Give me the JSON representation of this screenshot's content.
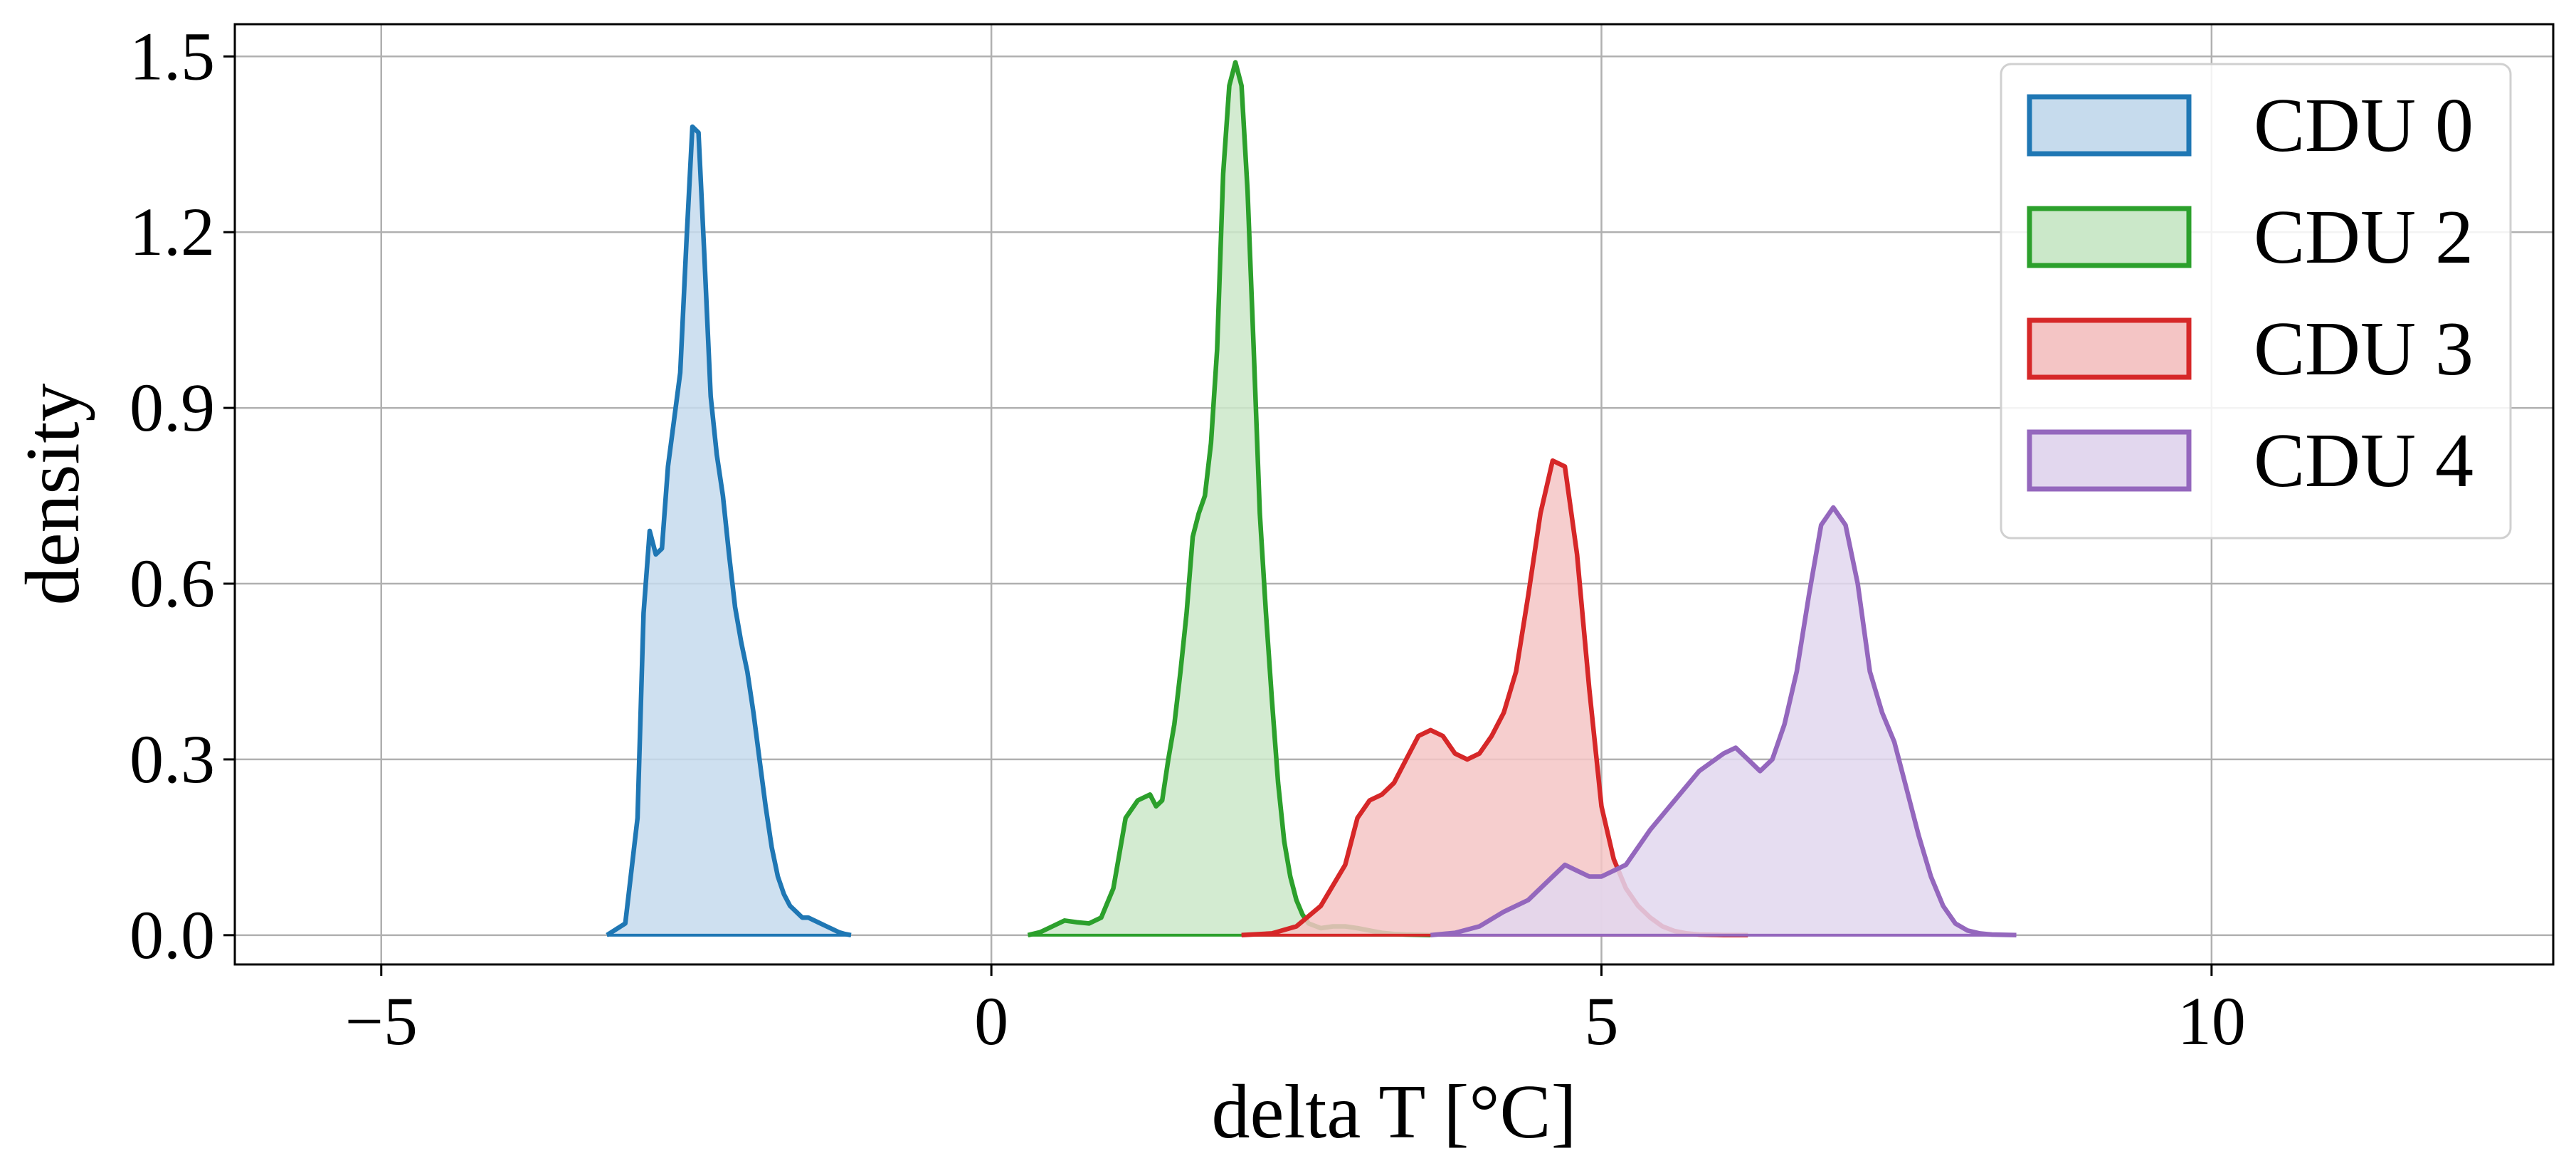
{
  "chart_data": {
    "type": "area",
    "xlabel": "delta T [°C]",
    "ylabel": "density",
    "xlim": [
      -6.2,
      12.8
    ],
    "ylim": [
      -0.05,
      1.555
    ],
    "xticks": [
      -5,
      0,
      5,
      10
    ],
    "xtick_labels": [
      "−5",
      "0",
      "5",
      "10"
    ],
    "yticks": [
      0.0,
      0.3,
      0.6,
      0.9,
      1.2,
      1.5
    ],
    "ytick_labels": [
      "0.0",
      "0.3",
      "0.6",
      "0.9",
      "1.2",
      "1.5"
    ],
    "grid": true,
    "legend_position": "top-right",
    "series": [
      {
        "name": "CDU 0",
        "color": "#1f77b4",
        "fill": "#c6dbed",
        "x": [
          -3.15,
          -3.0,
          -2.9,
          -2.85,
          -2.8,
          -2.75,
          -2.7,
          -2.65,
          -2.6,
          -2.55,
          -2.5,
          -2.45,
          -2.4,
          -2.35,
          -2.3,
          -2.25,
          -2.2,
          -2.15,
          -2.1,
          -2.05,
          -2.0,
          -1.95,
          -1.9,
          -1.85,
          -1.8,
          -1.75,
          -1.7,
          -1.65,
          -1.6,
          -1.55,
          -1.5,
          -1.45,
          -1.4,
          -1.35,
          -1.3,
          -1.25,
          -1.2,
          -1.15
        ],
        "y": [
          0.0,
          0.02,
          0.2,
          0.55,
          0.69,
          0.65,
          0.66,
          0.8,
          0.88,
          0.96,
          1.18,
          1.38,
          1.37,
          1.15,
          0.92,
          0.82,
          0.75,
          0.65,
          0.56,
          0.5,
          0.45,
          0.38,
          0.3,
          0.22,
          0.15,
          0.1,
          0.07,
          0.05,
          0.04,
          0.03,
          0.03,
          0.025,
          0.02,
          0.015,
          0.01,
          0.005,
          0.002,
          0.0
        ]
      },
      {
        "name": "CDU 2",
        "color": "#2ca02c",
        "fill": "#cbe8c9",
        "x": [
          0.3,
          0.4,
          0.5,
          0.6,
          0.7,
          0.8,
          0.9,
          1.0,
          1.1,
          1.2,
          1.3,
          1.35,
          1.4,
          1.45,
          1.5,
          1.55,
          1.6,
          1.65,
          1.7,
          1.75,
          1.8,
          1.85,
          1.9,
          1.95,
          2.0,
          2.05,
          2.1,
          2.15,
          2.2,
          2.25,
          2.3,
          2.35,
          2.4,
          2.45,
          2.5,
          2.55,
          2.6,
          2.7,
          2.8,
          2.9,
          3.0,
          3.1,
          3.2,
          3.3,
          3.4,
          3.5,
          3.6
        ],
        "y": [
          0.0,
          0.005,
          0.015,
          0.025,
          0.022,
          0.02,
          0.03,
          0.08,
          0.2,
          0.23,
          0.24,
          0.22,
          0.23,
          0.3,
          0.36,
          0.45,
          0.55,
          0.68,
          0.72,
          0.75,
          0.84,
          1.0,
          1.3,
          1.45,
          1.49,
          1.45,
          1.27,
          1.0,
          0.72,
          0.55,
          0.4,
          0.26,
          0.16,
          0.1,
          0.06,
          0.035,
          0.02,
          0.012,
          0.015,
          0.015,
          0.012,
          0.008,
          0.004,
          0.002,
          0.001,
          0.0005,
          0.0
        ]
      },
      {
        "name": "CDU 3",
        "color": "#d62728",
        "fill": "#f4c5c5",
        "x": [
          2.05,
          2.3,
          2.5,
          2.7,
          2.9,
          3.0,
          3.1,
          3.2,
          3.3,
          3.4,
          3.5,
          3.6,
          3.7,
          3.8,
          3.9,
          4.0,
          4.1,
          4.2,
          4.3,
          4.4,
          4.5,
          4.6,
          4.7,
          4.8,
          4.9,
          5.0,
          5.1,
          5.2,
          5.3,
          5.4,
          5.5,
          5.6,
          5.7,
          5.8,
          5.9,
          6.0,
          6.2
        ],
        "y": [
          0.0,
          0.003,
          0.015,
          0.05,
          0.12,
          0.2,
          0.23,
          0.24,
          0.26,
          0.3,
          0.34,
          0.35,
          0.34,
          0.31,
          0.3,
          0.31,
          0.34,
          0.38,
          0.45,
          0.58,
          0.72,
          0.81,
          0.8,
          0.65,
          0.42,
          0.22,
          0.13,
          0.08,
          0.05,
          0.03,
          0.015,
          0.007,
          0.003,
          0.001,
          0.0005,
          0.0002,
          0.0
        ]
      },
      {
        "name": "CDU 4",
        "color": "#9467bd",
        "fill": "#e2d7ee",
        "x": [
          3.6,
          3.8,
          4.0,
          4.2,
          4.4,
          4.6,
          4.7,
          4.8,
          4.9,
          5.0,
          5.2,
          5.4,
          5.6,
          5.8,
          6.0,
          6.1,
          6.2,
          6.3,
          6.4,
          6.5,
          6.6,
          6.7,
          6.8,
          6.9,
          7.0,
          7.1,
          7.2,
          7.3,
          7.4,
          7.5,
          7.6,
          7.7,
          7.8,
          7.9,
          8.0,
          8.1,
          8.2,
          8.3,
          8.4
        ],
        "y": [
          0.0,
          0.004,
          0.015,
          0.04,
          0.06,
          0.1,
          0.12,
          0.11,
          0.1,
          0.1,
          0.12,
          0.18,
          0.23,
          0.28,
          0.31,
          0.32,
          0.3,
          0.28,
          0.3,
          0.36,
          0.45,
          0.58,
          0.7,
          0.73,
          0.7,
          0.6,
          0.45,
          0.38,
          0.33,
          0.25,
          0.17,
          0.1,
          0.05,
          0.02,
          0.008,
          0.003,
          0.001,
          0.0005,
          0.0
        ]
      }
    ]
  }
}
